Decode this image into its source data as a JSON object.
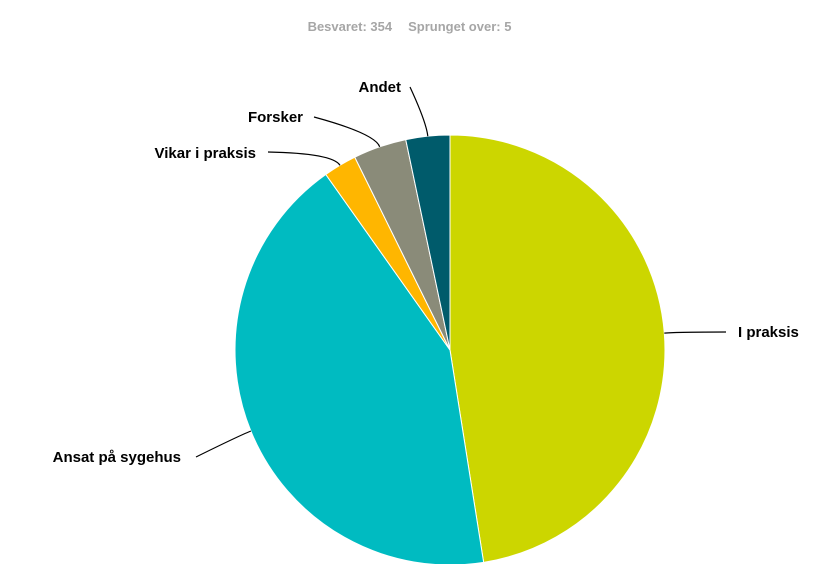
{
  "summary": {
    "answered": "Besvaret: 354",
    "skipped": "Sprunget over: 5"
  },
  "chart_data": {
    "type": "pie",
    "title": "",
    "slices": [
      {
        "label": "I praksis",
        "value": 47.5,
        "color": "#ccd600"
      },
      {
        "label": "Ansat på sygehus",
        "value": 42.7,
        "color": "#00bbc1"
      },
      {
        "label": "Vikar i praksis",
        "value": 2.5,
        "color": "#ffb600"
      },
      {
        "label": "Forsker",
        "value": 4.0,
        "color": "#8a8b79"
      },
      {
        "label": "Andet",
        "value": 3.3,
        "color": "#005b6b"
      }
    ]
  }
}
